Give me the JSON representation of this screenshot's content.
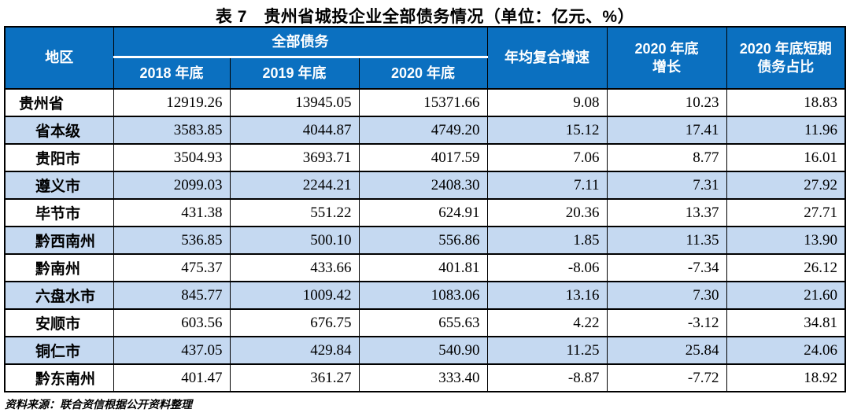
{
  "page": {
    "title": "表 7　贵州省城投企业全部债务情况（单位：亿元、%）",
    "source_note": "资料来源：联合资信根据公开资料整理"
  },
  "colors": {
    "header_bg": "#0b70c0",
    "header_text": "#ffffff",
    "alt_row_bg": "#c5d9f1",
    "border": "#000000",
    "text": "#000000"
  },
  "table": {
    "header": {
      "region": "地区",
      "debt_group": "全部债务",
      "y2018": "2018 年底",
      "y2019": "2019 年底",
      "y2020": "2020 年底",
      "cagr": "年均复合增速",
      "growth2020": "2020 年底\n增长",
      "short_term2020": "2020 年底短期\n债务占比"
    },
    "rows": [
      {
        "region": "贵州省",
        "cells": [
          "12919.26",
          "13945.05",
          "15371.66",
          "9.08",
          "10.23",
          "18.83"
        ]
      },
      {
        "region": "省本级",
        "cells": [
          "3583.85",
          "4044.87",
          "4749.20",
          "15.12",
          "17.41",
          "11.96"
        ]
      },
      {
        "region": "贵阳市",
        "cells": [
          "3504.93",
          "3693.71",
          "4017.59",
          "7.06",
          "8.77",
          "16.01"
        ]
      },
      {
        "region": "遵义市",
        "cells": [
          "2099.03",
          "2244.21",
          "2408.30",
          "7.11",
          "7.31",
          "27.92"
        ]
      },
      {
        "region": "毕节市",
        "cells": [
          "431.38",
          "551.22",
          "624.91",
          "20.36",
          "13.37",
          "27.71"
        ]
      },
      {
        "region": "黔西南州",
        "cells": [
          "536.85",
          "500.10",
          "556.86",
          "1.85",
          "11.35",
          "13.90"
        ]
      },
      {
        "region": "黔南州",
        "cells": [
          "475.37",
          "433.66",
          "401.81",
          "-8.06",
          "-7.34",
          "26.12"
        ]
      },
      {
        "region": "六盘水市",
        "cells": [
          "845.77",
          "1009.42",
          "1083.06",
          "13.16",
          "7.30",
          "21.60"
        ]
      },
      {
        "region": "安顺市",
        "cells": [
          "603.56",
          "676.75",
          "655.63",
          "4.22",
          "-3.12",
          "34.81"
        ]
      },
      {
        "region": "铜仁市",
        "cells": [
          "437.05",
          "429.84",
          "540.90",
          "11.25",
          "25.84",
          "24.06"
        ]
      },
      {
        "region": "黔东南州",
        "cells": [
          "401.47",
          "361.27",
          "333.40",
          "-8.87",
          "-7.72",
          "18.92"
        ]
      }
    ]
  }
}
